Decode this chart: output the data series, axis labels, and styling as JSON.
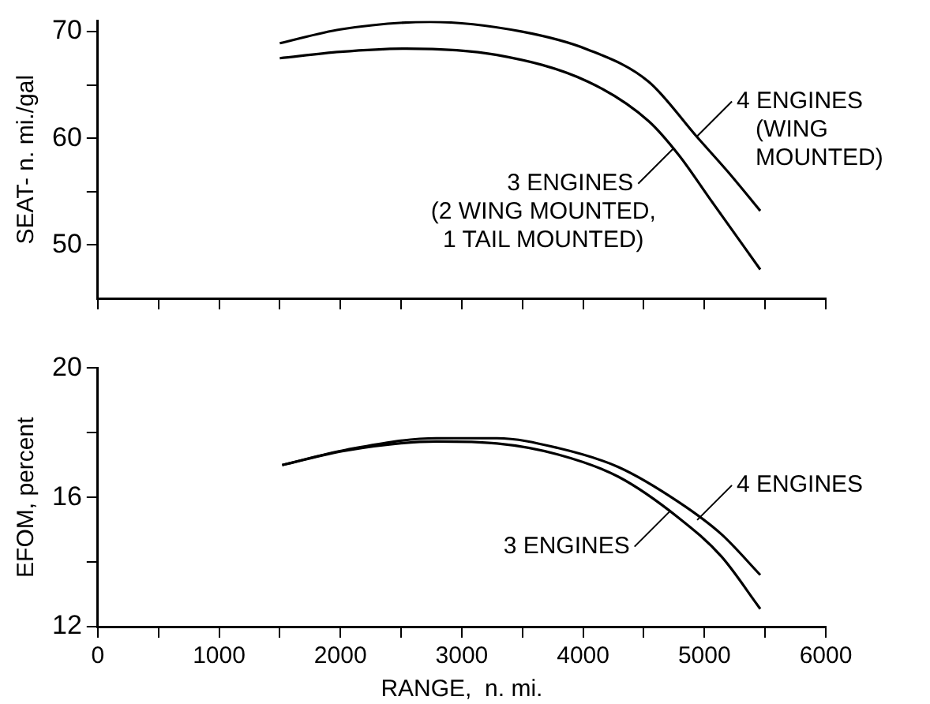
{
  "chart_data": [
    {
      "type": "line",
      "ylabel": "SEAT- n. mi./gal",
      "xlim": [
        0,
        6000
      ],
      "xticks": [
        0,
        {
          "value": 500,
          "label": null
        },
        1000,
        {
          "value": 1500,
          "label": null
        },
        2000,
        {
          "value": 2500,
          "label": null
        },
        3000,
        {
          "value": 3500,
          "label": null
        },
        4000,
        {
          "value": 4500,
          "label": null
        },
        5000,
        {
          "value": 5500,
          "label": null
        },
        6000
      ],
      "ylim": [
        45,
        71
      ],
      "yticks": [
        50,
        {
          "value": 55,
          "label": null
        },
        60,
        {
          "value": 65,
          "label": null
        },
        70
      ],
      "tick_labels": "y",
      "grid": false,
      "legend": false,
      "marker": "none",
      "line_style": "solid",
      "series": [
        {
          "color": "#000000",
          "x": [
            1500,
            2000,
            2740,
            3490,
            4040,
            4540,
            4940,
            5190,
            5460
          ],
          "values": [
            68.9,
            70.2,
            70.9,
            70.0,
            68.3,
            65.3,
            60.1,
            56.9,
            53.2
          ]
        },
        {
          "color": "#000000",
          "x": [
            1500,
            2000,
            2540,
            3290,
            4040,
            4540,
            4790,
            5040,
            5460
          ],
          "values": [
            67.5,
            68.1,
            68.4,
            67.8,
            65.3,
            61.6,
            58.4,
            54.4,
            47.7
          ]
        }
      ],
      "annotations": [
        {
          "text": "4 ENGINES\n(WING\nMOUNTED)",
          "x": 4940,
          "y": 60.2
        },
        {
          "text": "3 ENGINES\n(2 WING MOUNTED,\n1 TAIL MOUNTED)",
          "x": 4740,
          "y": 59.0
        }
      ]
    },
    {
      "type": "line",
      "ylabel": "EFOM, percent",
      "xlabel": "RANGE,  n. mi.",
      "xlim": [
        0,
        6000
      ],
      "xticks": [
        0,
        {
          "value": 500,
          "label": null
        },
        1000,
        {
          "value": 1500,
          "label": null
        },
        2000,
        {
          "value": 2500,
          "label": null
        },
        3000,
        {
          "value": 3500,
          "label": null
        },
        4000,
        {
          "value": 4500,
          "label": null
        },
        5000,
        {
          "value": 5500,
          "label": null
        },
        6000
      ],
      "ylim": [
        12,
        20
      ],
      "yticks": [
        12,
        {
          "value": 14,
          "label": null
        },
        16,
        {
          "value": 18,
          "label": null
        },
        20
      ],
      "grid": false,
      "legend": false,
      "marker": "none",
      "line_style": "solid",
      "series": [
        {
          "color": "#000000",
          "x": [
            1520,
            2045,
            2790,
            3290,
            3790,
            4290,
            4790,
            5140,
            5460
          ],
          "values": [
            17.0,
            17.47,
            17.83,
            17.83,
            17.53,
            16.94,
            15.85,
            14.86,
            13.6
          ]
        },
        {
          "color": "#000000",
          "x": [
            1520,
            2045,
            2790,
            3290,
            3790,
            4290,
            4790,
            5140,
            5460
          ],
          "values": [
            17.0,
            17.45,
            17.73,
            17.67,
            17.33,
            16.64,
            15.36,
            14.17,
            12.55
          ]
        }
      ],
      "annotations": [
        {
          "text": "4 ENGINES",
          "x": 4940,
          "y": 15.3
        },
        {
          "text": "3 ENGINES",
          "x": 4710,
          "y": 15.55
        }
      ]
    }
  ]
}
